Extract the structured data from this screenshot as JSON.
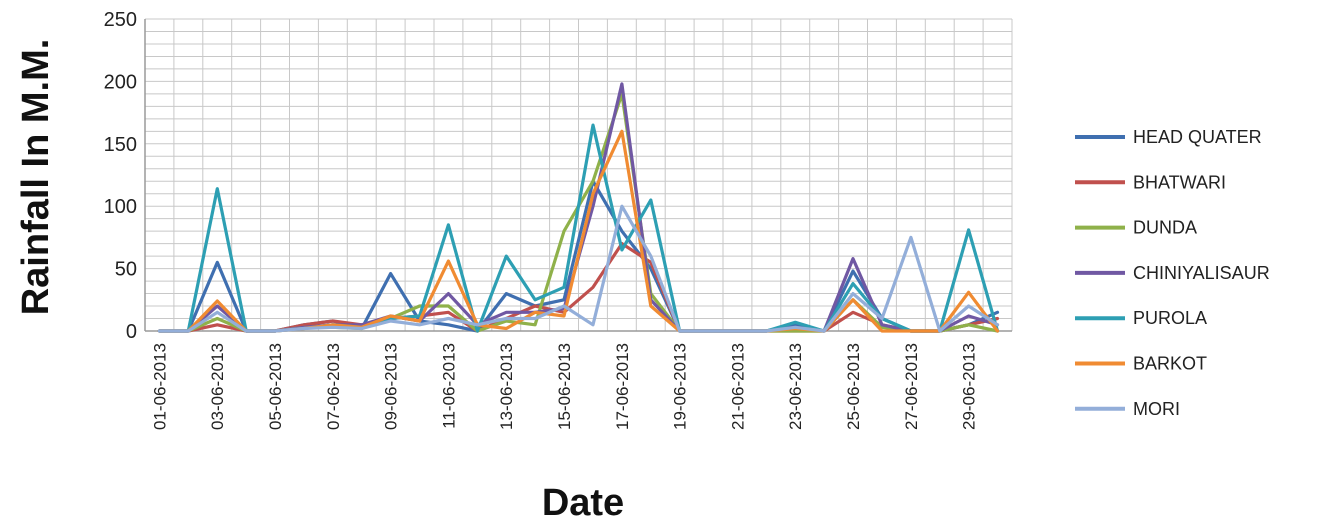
{
  "chart_data": {
    "type": "line",
    "xlabel": "Date",
    "ylabel": "Rainfall In M.M.",
    "ylim": [
      0,
      250
    ],
    "yticks": [
      "0",
      "50",
      "100",
      "150",
      "200",
      "250"
    ],
    "grid": true,
    "legend_position": "right",
    "x": [
      "01-06-2013",
      "02-06-2013",
      "03-06-2013",
      "04-06-2013",
      "05-06-2013",
      "06-06-2013",
      "07-06-2013",
      "08-06-2013",
      "09-06-2013",
      "10-06-2013",
      "11-06-2013",
      "12-06-2013",
      "13-06-2013",
      "14-06-2013",
      "15-06-2013",
      "16-06-2013",
      "17-06-2013",
      "18-06-2013",
      "19-06-2013",
      "20-06-2013",
      "21-06-2013",
      "22-06-2013",
      "23-06-2013",
      "24-06-2013",
      "25-06-2013",
      "26-06-2013",
      "27-06-2013",
      "28-06-2013",
      "29-06-2013",
      "30-06-2013"
    ],
    "x_tick_labels": [
      "01-06-2013",
      "03-06-2013",
      "05-06-2013",
      "07-06-2013",
      "09-06-2013",
      "11-06-2013",
      "13-06-2013",
      "15-06-2013",
      "17-06-2013",
      "19-06-2013",
      "21-06-2013",
      "23-06-2013",
      "25-06-2013",
      "27-06-2013",
      "29-06-2013"
    ],
    "series": [
      {
        "name": "HEAD QUATER",
        "color": "#3f6fb0",
        "values": [
          0,
          0,
          55,
          0,
          0,
          5,
          8,
          2,
          46,
          8,
          5,
          0,
          30,
          20,
          25,
          120,
          80,
          50,
          0,
          0,
          0,
          0,
          5,
          0,
          48,
          10,
          0,
          0,
          5,
          15
        ]
      },
      {
        "name": "BHATWARI",
        "color": "#c0504d",
        "values": [
          0,
          0,
          5,
          0,
          0,
          5,
          8,
          5,
          10,
          12,
          15,
          0,
          10,
          20,
          15,
          35,
          70,
          55,
          0,
          0,
          0,
          0,
          0,
          0,
          15,
          5,
          0,
          0,
          5,
          10
        ]
      },
      {
        "name": "DUNDA",
        "color": "#8fb14a",
        "values": [
          0,
          0,
          10,
          0,
          0,
          3,
          3,
          2,
          10,
          20,
          20,
          0,
          8,
          5,
          80,
          120,
          190,
          30,
          0,
          0,
          0,
          0,
          0,
          0,
          25,
          3,
          0,
          0,
          5,
          0
        ]
      },
      {
        "name": "CHINIYALISAUR",
        "color": "#7058a3",
        "values": [
          0,
          0,
          20,
          0,
          0,
          3,
          5,
          5,
          12,
          8,
          30,
          5,
          15,
          15,
          18,
          100,
          198,
          25,
          0,
          0,
          0,
          0,
          3,
          0,
          58,
          5,
          0,
          0,
          12,
          5
        ]
      },
      {
        "name": "PUROLA",
        "color": "#2d9fb3",
        "values": [
          0,
          0,
          114,
          0,
          0,
          2,
          5,
          3,
          10,
          12,
          85,
          0,
          60,
          25,
          35,
          165,
          65,
          105,
          0,
          0,
          0,
          0,
          7,
          0,
          38,
          10,
          0,
          0,
          81,
          0
        ]
      },
      {
        "name": "BARKOT",
        "color": "#f08b32",
        "values": [
          0,
          0,
          24,
          0,
          0,
          2,
          5,
          3,
          12,
          8,
          56,
          5,
          2,
          15,
          12,
          110,
          160,
          20,
          0,
          0,
          0,
          0,
          2,
          0,
          25,
          0,
          0,
          0,
          31,
          0
        ]
      },
      {
        "name": "MORI",
        "color": "#93aed9",
        "values": [
          0,
          0,
          15,
          0,
          0,
          2,
          3,
          2,
          8,
          5,
          10,
          5,
          10,
          10,
          20,
          5,
          100,
          60,
          0,
          0,
          0,
          0,
          3,
          0,
          30,
          10,
          75,
          0,
          20,
          5
        ]
      }
    ]
  }
}
